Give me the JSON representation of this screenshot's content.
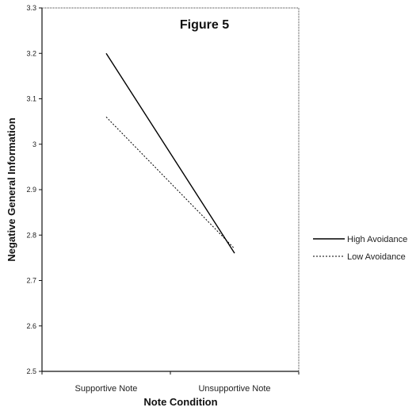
{
  "chart_data": {
    "type": "line",
    "title": "Figure 5",
    "xlabel": "Note Condition",
    "ylabel": "Negative General Information",
    "categories": [
      "Supportive Note",
      "Unsupportive Note"
    ],
    "ylim": [
      2.5,
      3.3
    ],
    "yticks": [
      2.5,
      2.6,
      2.7,
      2.8,
      2.9,
      3,
      3.1,
      3.2,
      3.3
    ],
    "grid": false,
    "legend_position": "right",
    "series": [
      {
        "name": "High Avoidance",
        "values": [
          3.2,
          2.76
        ],
        "style": "solid",
        "color": "#000000"
      },
      {
        "name": "Low Avoidance",
        "values": [
          3.06,
          2.77
        ],
        "style": "dotted",
        "color": "#000000"
      }
    ]
  }
}
